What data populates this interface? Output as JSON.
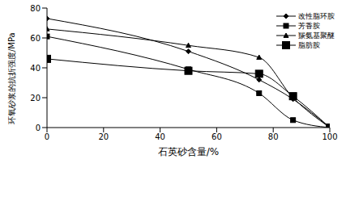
{
  "chart_data": {
    "type": "line",
    "x_label": "石英砂含量/%",
    "y_label": "环氧砂浆的抗折强度/MPa",
    "x": [
      0,
      50,
      75,
      87,
      100
    ],
    "series": [
      {
        "name": "改性脂环胺",
        "color": "#000000",
        "marker": "diamond",
        "values": [
          73,
          51,
          32,
          19,
          0
        ]
      },
      {
        "name": "芳香胺",
        "color": "#000000",
        "marker": "square",
        "values": [
          61,
          39,
          23,
          5,
          0
        ]
      },
      {
        "name": "羰氨基聚醚",
        "color": "#000000",
        "marker": "triangle",
        "values": [
          66,
          55,
          47,
          20,
          0
        ]
      },
      {
        "name": "脂肪胺",
        "color": "#000000",
        "marker": "square",
        "values": [
          46,
          38,
          36,
          21,
          0
        ]
      }
    ],
    "xlim": [
      0,
      100
    ],
    "xticks": [
      0,
      20,
      40,
      60,
      80,
      100
    ],
    "ylim": [
      0,
      80
    ],
    "yticks": [
      0,
      20,
      40,
      60,
      80
    ],
    "grid": false,
    "legend": "upper right",
    "line_style": "solid"
  }
}
